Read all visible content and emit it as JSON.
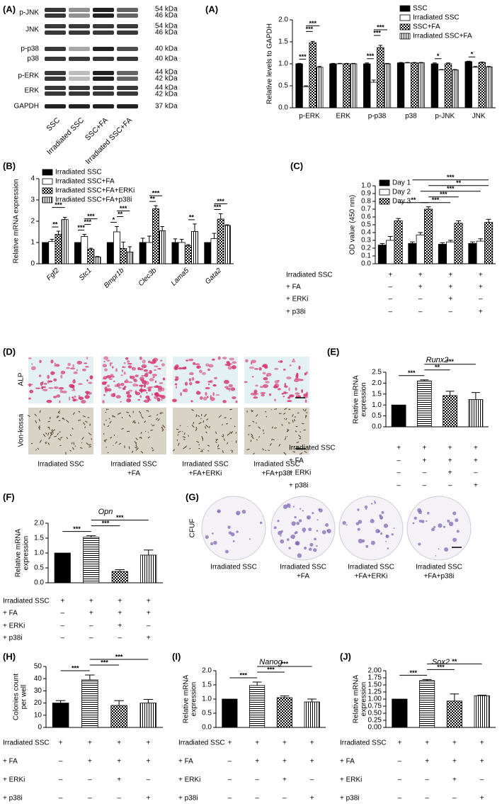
{
  "blot": {
    "panel": "(A)",
    "proteins": [
      "p-JNK",
      "JNK",
      "p-p38",
      "p38",
      "p-ERK",
      "ERK",
      "GAPDH"
    ],
    "sizes": [
      "54 kDa",
      "46 kDa",
      "54 kDa",
      "46 kDa",
      "40 kDa",
      "40 kDa",
      "44 kDa",
      "42 kDa",
      "44 kDa",
      "42 kDa",
      "37 kDa"
    ],
    "lanes": [
      "SSC",
      "Irradiated SSC",
      "SSC+FA",
      "Irradiated SSC+FA"
    ]
  },
  "staining": {
    "panel": "(D)",
    "rows": [
      "ALP",
      "Von-kossa"
    ],
    "captions": [
      [
        "Irradiated SSC"
      ],
      [
        "Irradiated SSC",
        "+FA"
      ],
      [
        "Irradiated SSC",
        "+FA+ERKi"
      ],
      [
        "Irradiated SSC",
        "+FA+p38i"
      ]
    ]
  },
  "colonies": {
    "panel": "(G)",
    "label": "CFUF",
    "captions": [
      [
        "Irradiated SSC"
      ],
      [
        "Irradiated SSC",
        "+FA"
      ],
      [
        "Irradiated SSC",
        "+FA+ERKi"
      ],
      [
        "Irradiated SSC",
        "+FA+p38i"
      ]
    ]
  },
  "chart_data": [
    {
      "type": "bar",
      "panel": "(A)",
      "ylabel": "Relative levels to GAPDH",
      "categories": [
        "p-ERK",
        "ERK",
        "p-p38",
        "p38",
        "p-JNK",
        "JNK"
      ],
      "series": [
        {
          "name": "SSC",
          "fill": "black",
          "values": [
            1.0,
            1.0,
            1.0,
            1.02,
            1.0,
            1.05
          ],
          "errors": [
            0.01,
            0.01,
            0.02,
            0.01,
            0.02,
            0.01
          ]
        },
        {
          "name": "Irradiated SSC",
          "fill": "white",
          "values": [
            0.48,
            1.0,
            0.58,
            1.02,
            0.86,
            0.92
          ],
          "errors": [
            0.02,
            0.01,
            0.05,
            0.01,
            0.01,
            0.02
          ]
        },
        {
          "name": "SSC+FA",
          "fill": "checker",
          "values": [
            1.48,
            1.0,
            1.37,
            1.02,
            1.0,
            1.03
          ],
          "errors": [
            0.03,
            0.01,
            0.05,
            0.01,
            0.02,
            0.01
          ]
        },
        {
          "name": "Irradiated SSC+FA",
          "fill": "vertical-lines",
          "values": [
            0.92,
            1.0,
            1.0,
            1.02,
            0.86,
            0.93
          ],
          "errors": [
            0.02,
            0.01,
            0.01,
            0.01,
            0.01,
            0.01
          ]
        }
      ],
      "ylim": [
        0,
        2
      ],
      "yticks": [
        {
          "value": 0,
          "label": "0.0"
        },
        {
          "value": 0.5,
          "label": "0.5"
        },
        {
          "value": 1,
          "label": "1.0"
        },
        {
          "value": 1.5,
          "label": "1.5"
        },
        {
          "value": 2,
          "label": "2.0"
        }
      ],
      "legend": "upper right",
      "annotations": [
        "***",
        "***",
        "***",
        "***",
        "***",
        "***",
        "*",
        "*"
      ]
    },
    {
      "type": "bar",
      "panel": "(B)",
      "ylabel": "Relative mRNA expression",
      "categories": [
        "Fgf2",
        "Stc1",
        "Bmpr1b",
        "Clec3b",
        "Lama5",
        "Gata2"
      ],
      "series": [
        {
          "name": "Irradiated SSC",
          "fill": "black",
          "values": [
            1,
            1,
            1,
            1,
            1,
            1
          ],
          "errors": [
            0,
            0,
            0,
            0.2,
            0.17,
            0
          ]
        },
        {
          "name": "Irradiated SSC+FA",
          "fill": "white",
          "values": [
            1.05,
            1.28,
            1.5,
            1.0,
            1.0,
            1.18
          ],
          "errors": [
            0.1,
            0.1,
            0.25,
            0.3,
            0.15,
            0.25
          ]
        },
        {
          "name": "Irradiated SSC+FA+ERKi",
          "fill": "checker",
          "values": [
            1.38,
            0.68,
            0.72,
            2.58,
            0.85,
            2.1
          ],
          "errors": [
            0.15,
            0.05,
            0.3,
            0.15,
            0.05,
            0.25
          ]
        },
        {
          "name": "Irradiated SSC+FA+p38i",
          "fill": "vertical-lines",
          "values": [
            2.08,
            0.32,
            0.55,
            1.55,
            1.52,
            1.8
          ],
          "errors": [
            0.1,
            0.02,
            0.25,
            0.2,
            0.35,
            0.03
          ]
        }
      ],
      "ylim": [
        0,
        4
      ],
      "yticks": [
        0,
        1,
        2,
        3,
        4
      ],
      "legend": "upper left",
      "annotations": [
        "**",
        "***",
        "***",
        "***",
        "***",
        "*",
        "**",
        "***",
        "**",
        "***",
        "**",
        "***",
        "***"
      ]
    },
    {
      "type": "bar",
      "panel": "(C)",
      "ylabel": "OD value (450 nm)",
      "categories": [
        null,
        null,
        null,
        null
      ],
      "series": [
        {
          "name": "Day 1",
          "fill": "black",
          "values": [
            0.24,
            0.26,
            0.25,
            0.26
          ],
          "errors": [
            0.02,
            0.02,
            0.02,
            0.02
          ]
        },
        {
          "name": "Day 2",
          "fill": "white",
          "values": [
            0.3,
            0.37,
            0.28,
            0.29
          ],
          "errors": [
            0.05,
            0.03,
            0.02,
            0.03
          ]
        },
        {
          "name": "Day 3",
          "fill": "checker",
          "values": [
            0.55,
            0.7,
            0.52,
            0.53
          ],
          "errors": [
            0.03,
            0.03,
            0.03,
            0.04
          ]
        }
      ],
      "ylim": [
        0,
        1
      ],
      "yticks": [
        {
          "value": 0,
          "label": "0.0"
        },
        {
          "value": 0.1,
          "label": "0.1"
        },
        {
          "value": 0.2,
          "label": "0.2"
        },
        {
          "value": 0.3,
          "label": "0.3"
        },
        {
          "value": 0.4,
          "label": "0.4"
        },
        {
          "value": 0.5,
          "label": "0.5"
        },
        {
          "value": 0.6,
          "label": "0.6"
        },
        {
          "value": 0.7,
          "label": "0.7"
        },
        {
          "value": 0.8,
          "label": "0.8"
        },
        {
          "value": 0.9,
          "label": "0.9"
        },
        {
          "value": 1,
          "label": "1.0"
        }
      ],
      "legend": "upper left",
      "annotations": [
        "**",
        "***",
        "***",
        "***",
        "**",
        "***"
      ],
      "conditions": {
        "rows": [
          "Irradiated SSC",
          "+ FA",
          "+ ERKi",
          "+ p38i"
        ],
        "marks": [
          [
            "+",
            "+",
            "+",
            "+"
          ],
          [
            "–",
            "+",
            "+",
            "+"
          ],
          [
            "–",
            "–",
            "+",
            "–"
          ],
          [
            "–",
            "–",
            "–",
            "+"
          ]
        ]
      }
    },
    {
      "type": "bar",
      "panel": "(E)",
      "title": "Runx2",
      "ylabel": [
        "Relative mRNA",
        "expression"
      ],
      "categories": [
        null,
        null,
        null,
        null
      ],
      "series": [
        {
          "fills": [
            "black",
            "horizontal-lines",
            "checker",
            "vertical-lines"
          ],
          "values": [
            1.0,
            2.1,
            1.43,
            1.25
          ],
          "errors": [
            0,
            0.05,
            0.2,
            0.32
          ]
        }
      ],
      "ylim": [
        0,
        2.5
      ],
      "yticks": [
        {
          "value": 0,
          "label": "0.0"
        },
        {
          "value": 0.5,
          "label": "0.5"
        },
        {
          "value": 1,
          "label": "1.0"
        },
        {
          "value": 1.5,
          "label": "1.5"
        },
        {
          "value": 2,
          "label": "2.0"
        },
        {
          "value": 2.5,
          "label": "2.5"
        }
      ],
      "annotations": [
        "***",
        "**",
        "***"
      ],
      "conditions": {
        "rows": [
          "Irradiated SSC",
          "+ FA",
          "+ ERKi",
          "+ p38i"
        ],
        "marks": [
          [
            "+",
            "+",
            "+",
            "+"
          ],
          [
            "–",
            "+",
            "+",
            "+"
          ],
          [
            "–",
            "–",
            "+",
            "–"
          ],
          [
            "–",
            "–",
            "–",
            "+"
          ]
        ]
      }
    },
    {
      "type": "bar",
      "panel": "(F)",
      "title": "Opn",
      "ylabel": [
        "Relative mRNA",
        "expression"
      ],
      "categories": [
        null,
        null,
        null,
        null
      ],
      "series": [
        {
          "fills": [
            "black",
            "horizontal-lines",
            "checker",
            "vertical-lines"
          ],
          "values": [
            1.0,
            1.53,
            0.38,
            0.93
          ],
          "errors": [
            0,
            0.05,
            0.06,
            0.17
          ]
        }
      ],
      "ylim": [
        0,
        2
      ],
      "yticks": [
        {
          "value": 0,
          "label": "0.0"
        },
        {
          "value": 0.5,
          "label": "0.5"
        },
        {
          "value": 1,
          "label": "1.0"
        },
        {
          "value": 1.5,
          "label": "1.5"
        },
        {
          "value": 2,
          "label": "2.0"
        }
      ],
      "annotations": [
        "***",
        "***",
        "***"
      ],
      "conditions": {
        "rows": [
          "Irradiated SSC",
          "+ FA",
          "+ ERKi",
          "+ p38i"
        ],
        "marks": [
          [
            "+",
            "+",
            "+",
            "+"
          ],
          [
            "–",
            "+",
            "+",
            "+"
          ],
          [
            "–",
            "–",
            "+",
            "–"
          ],
          [
            "–",
            "–",
            "–",
            "+"
          ]
        ]
      }
    },
    {
      "type": "bar",
      "panel": "(H)",
      "ylabel": [
        "Colonies count",
        "per well"
      ],
      "categories": [
        null,
        null,
        null,
        null
      ],
      "series": [
        {
          "fills": [
            "black",
            "horizontal-lines",
            "checker",
            "vertical-lines"
          ],
          "values": [
            20,
            39,
            18,
            20
          ],
          "errors": [
            2,
            4,
            4,
            3
          ]
        }
      ],
      "ylim": [
        0,
        50
      ],
      "yticks": [
        0,
        10,
        20,
        30,
        40,
        50
      ],
      "annotations": [
        "***",
        "***",
        "***"
      ],
      "conditions": {
        "rows": [
          "Irradiated SSC",
          "+ FA",
          "+ ERKi",
          "+ p38i"
        ],
        "marks": [
          [
            "+",
            "+",
            "+",
            "+"
          ],
          [
            "–",
            "+",
            "+",
            "+"
          ],
          [
            "–",
            "–",
            "+",
            "–"
          ],
          [
            "–",
            "–",
            "–",
            "+"
          ]
        ]
      }
    },
    {
      "type": "bar",
      "panel": "(I)",
      "title": "Nanog",
      "ylabel": [
        "Relative mRNA",
        "expression"
      ],
      "categories": [
        null,
        null,
        null,
        null
      ],
      "series": [
        {
          "fills": [
            "black",
            "horizontal-lines",
            "checker",
            "vertical-lines"
          ],
          "values": [
            1.0,
            1.48,
            1.05,
            0.9
          ],
          "errors": [
            0,
            0.12,
            0.06,
            0.1
          ]
        }
      ],
      "ylim": [
        0,
        2
      ],
      "yticks": [
        {
          "value": 0,
          "label": "0.0"
        },
        {
          "value": 0.5,
          "label": "0.5"
        },
        {
          "value": 1,
          "label": "1.0"
        },
        {
          "value": 1.5,
          "label": "1.5"
        },
        {
          "value": 2,
          "label": "2.0"
        }
      ],
      "annotations": [
        "***",
        "***",
        "***"
      ],
      "conditions": {
        "rows": [
          "Irradiated SSC",
          "+ FA",
          "+ ERKi",
          "+ p38i"
        ],
        "marks": [
          [
            "+",
            "+",
            "+",
            "+"
          ],
          [
            "–",
            "+",
            "+",
            "+"
          ],
          [
            "–",
            "–",
            "+",
            "–"
          ],
          [
            "–",
            "–",
            "–",
            "+"
          ]
        ]
      }
    },
    {
      "type": "bar",
      "panel": "(J)",
      "title": "Sox2",
      "ylabel": [
        "Relative mRNA",
        "expression"
      ],
      "categories": [
        null,
        null,
        null,
        null
      ],
      "series": [
        {
          "fills": [
            "black",
            "horizontal-lines",
            "checker",
            "vertical-lines"
          ],
          "values": [
            1.0,
            1.65,
            0.93,
            1.12
          ],
          "errors": [
            0,
            0.04,
            0.25,
            0.02
          ]
        }
      ],
      "ylim": [
        0,
        2
      ],
      "yticks": [
        {
          "value": 0,
          "label": "0.00"
        },
        {
          "value": 0.25,
          "label": "0.25"
        },
        {
          "value": 0.5,
          "label": "0.50"
        },
        {
          "value": 0.75,
          "label": "0.75"
        },
        {
          "value": 1,
          "label": "1.00"
        },
        {
          "value": 1.25,
          "label": "1.25"
        },
        {
          "value": 1.5,
          "label": "1.50"
        },
        {
          "value": 1.75,
          "label": "1.75"
        },
        {
          "value": 2,
          "label": "2.00"
        }
      ],
      "annotations": [
        "***",
        "***",
        "**"
      ],
      "conditions": {
        "rows": [
          "Irradiated SSC",
          "+ FA",
          "+ ERKi",
          "+ p38i"
        ],
        "marks": [
          [
            "+",
            "+",
            "+",
            "+"
          ],
          [
            "–",
            "+",
            "+",
            "+"
          ],
          [
            "–",
            "–",
            "+",
            "–"
          ],
          [
            "–",
            "–",
            "–",
            "+"
          ]
        ]
      }
    }
  ]
}
